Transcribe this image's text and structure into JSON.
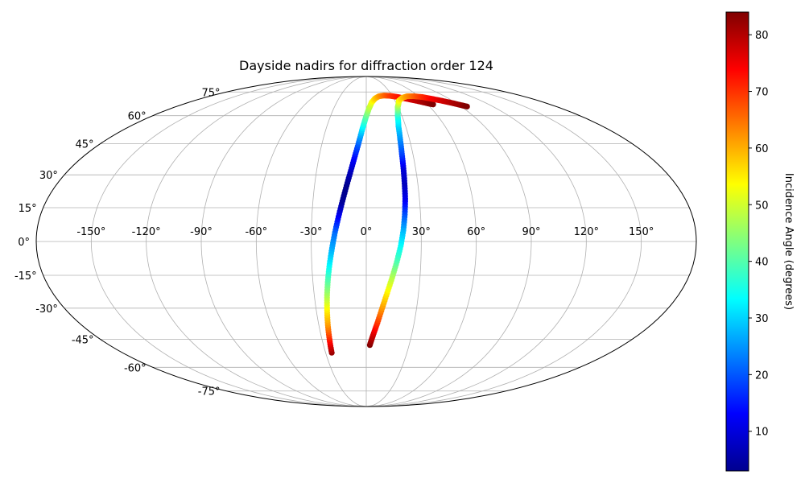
{
  "chart_data": {
    "type": "scatter",
    "projection": "mollweide",
    "title": "Dayside nadirs for diffraction order 124",
    "grid": true,
    "lon_ticks": [
      -150,
      -120,
      -90,
      -60,
      -30,
      0,
      30,
      60,
      90,
      120,
      150
    ],
    "lon_tick_labels": [
      "-150°",
      "-120°",
      "-90°",
      "-60°",
      "-30°",
      "0°",
      "30°",
      "60°",
      "90°",
      "120°",
      "150°"
    ],
    "lat_ticks": [
      75,
      60,
      45,
      30,
      15,
      0,
      -15,
      -30,
      -45,
      -60,
      -75
    ],
    "lat_tick_labels": [
      "75°",
      "60°",
      "45°",
      "30°",
      "15°",
      "0°",
      "-15°",
      "-30°",
      "-45°",
      "-60°",
      "-75°"
    ],
    "colormap": "jet",
    "colorbar": {
      "label": "Incidence Angle (degrees)",
      "range": [
        3,
        84
      ],
      "ticks": [
        10,
        20,
        30,
        40,
        50,
        60,
        70,
        80
      ],
      "tick_labels": [
        "10",
        "20",
        "30",
        "40",
        "50",
        "60",
        "70",
        "80"
      ]
    },
    "series": [
      {
        "lon": [
          -25.5,
          -24.9,
          -24.3,
          -23.5,
          -22.6,
          -21.5,
          -20.2,
          -18.7,
          -17.1,
          -15.3,
          -13.4,
          -11.4,
          -9.3,
          -7.2,
          -5.0,
          -2.8,
          -0.4,
          2.3,
          5.5,
          9.5,
          14.5,
          20.5,
          27.5,
          35.5,
          44.5,
          53.5,
          61.0,
          65.5
        ],
        "lat": [
          -52,
          -45,
          -38,
          -31,
          -24,
          -17,
          -10,
          -3,
          4,
          11,
          18,
          25,
          32,
          39,
          46,
          53,
          59,
          64,
          68,
          70.5,
          72,
          72.5,
          72.3,
          71.5,
          70.2,
          68.8,
          67.4,
          66.7
        ],
        "incidence": [
          82,
          72,
          62,
          55,
          47,
          40,
          33,
          27,
          22,
          13,
          5,
          4,
          8,
          14,
          22,
          32,
          40,
          47,
          52,
          57,
          61,
          65,
          69,
          72,
          76,
          79,
          82,
          84
        ]
      },
      {
        "lon": [
          2.5,
          4.5,
          7.0,
          9.5,
          12.0,
          14.5,
          16.8,
          18.8,
          20.3,
          21.3,
          22.0,
          22.3,
          22.6,
          22.9,
          23.5,
          24.5,
          26.5,
          29.5,
          34.0,
          40.0,
          47.0,
          55.0,
          63.0,
          71.0,
          79.0,
          86.0,
          92.0,
          95.5
        ],
        "lat": [
          -48,
          -43,
          -37,
          -30,
          -23,
          -16,
          -9,
          -2,
          5,
          12,
          19,
          26,
          33,
          40,
          47,
          54,
          60,
          65,
          69,
          71,
          72,
          72,
          71.5,
          70.3,
          69.0,
          67.6,
          66.2,
          65.4
        ],
        "incidence": [
          84,
          78,
          70,
          62,
          55,
          48,
          40,
          34,
          28,
          20,
          12,
          8,
          10,
          18,
          24,
          30,
          36,
          45,
          53,
          58,
          62,
          66,
          70,
          74,
          77,
          80,
          82,
          84
        ]
      }
    ]
  }
}
